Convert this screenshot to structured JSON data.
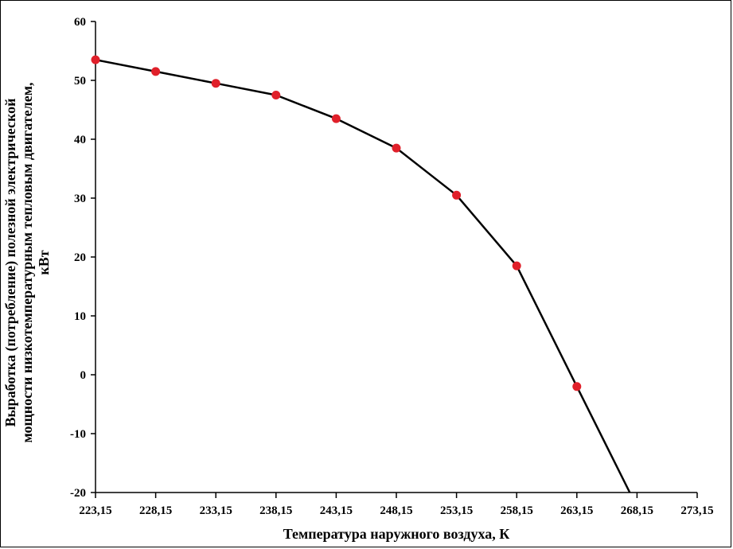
{
  "chart_data": {
    "type": "line",
    "title": "",
    "xlabel": "Температура наружного воздуха, К",
    "ylabel_lines": [
      "Выработка (потребление) полезной электрической",
      "мощности низкотемпературным тепловым двигателем,",
      "кВт"
    ],
    "x_ticks": [
      "223,15",
      "228,15",
      "233,15",
      "238,15",
      "243,15",
      "248,15",
      "253,15",
      "258,15",
      "263,15",
      "268,15",
      "273,15"
    ],
    "y_ticks": [
      "60",
      "50",
      "40",
      "30",
      "20",
      "10",
      "0",
      "-10",
      "-20"
    ],
    "xlim": [
      223.15,
      273.15
    ],
    "ylim": [
      -20,
      60
    ],
    "grid": false,
    "series": [
      {
        "x": [
          223.15,
          228.15,
          233.15,
          238.15,
          243.15,
          248.15,
          253.15,
          258.15,
          263.15,
          267.55
        ],
        "values": [
          53.5,
          51.5,
          49.5,
          47.5,
          43.5,
          38.5,
          30.5,
          18.5,
          -2,
          -20
        ],
        "markers": [
          true,
          true,
          true,
          true,
          true,
          true,
          true,
          true,
          true,
          false
        ]
      }
    ],
    "line_color": "#000000",
    "marker_color": "#e0202a"
  }
}
